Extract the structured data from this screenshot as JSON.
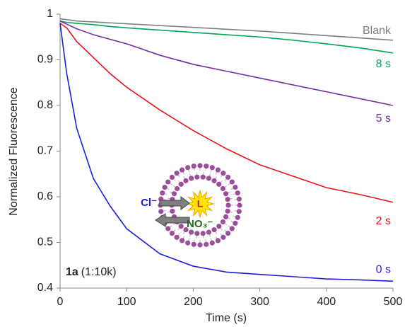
{
  "chart_data": {
    "type": "line",
    "xlabel": "Time (s)",
    "ylabel": "Normalized Fluorescence",
    "x": [
      0,
      10,
      25,
      50,
      75,
      100,
      150,
      200,
      250,
      300,
      350,
      400,
      450,
      500
    ],
    "series": [
      {
        "name": "Blank",
        "color": "#7f7f7f",
        "values": [
          0.99,
          0.988,
          0.985,
          0.983,
          0.981,
          0.979,
          0.975,
          0.971,
          0.967,
          0.963,
          0.958,
          0.953,
          0.948,
          0.943
        ]
      },
      {
        "name": "8 s",
        "color": "#00a651",
        "values": [
          0.985,
          0.982,
          0.98,
          0.977,
          0.973,
          0.97,
          0.965,
          0.96,
          0.955,
          0.95,
          0.943,
          0.935,
          0.926,
          0.915
        ]
      },
      {
        "name": "5 s",
        "color": "#7030a0",
        "values": [
          0.985,
          0.978,
          0.968,
          0.955,
          0.945,
          0.935,
          0.91,
          0.89,
          0.875,
          0.86,
          0.845,
          0.83,
          0.815,
          0.8
        ]
      },
      {
        "name": "2 s",
        "color": "#e8141b",
        "values": [
          0.98,
          0.97,
          0.94,
          0.905,
          0.87,
          0.84,
          0.79,
          0.745,
          0.705,
          0.67,
          0.645,
          0.62,
          0.605,
          0.588
        ]
      },
      {
        "name": "0 s",
        "color": "#1f1fd6",
        "values": [
          0.98,
          0.87,
          0.75,
          0.64,
          0.58,
          0.53,
          0.475,
          0.448,
          0.435,
          0.43,
          0.425,
          0.42,
          0.418,
          0.415
        ]
      }
    ],
    "xlim": [
      0,
      500
    ],
    "xticks": [
      0,
      100,
      200,
      300,
      400,
      500
    ],
    "ylim": [
      0.4,
      1
    ],
    "yticks": [
      0.4,
      0.5,
      0.6,
      0.7,
      0.8,
      0.9,
      1
    ],
    "annotation_bold": "1a",
    "annotation": "(1:10k)",
    "inset": {
      "anion_in": "Cl⁻",
      "ligand": "L",
      "anion_out": "NO₃⁻"
    }
  }
}
